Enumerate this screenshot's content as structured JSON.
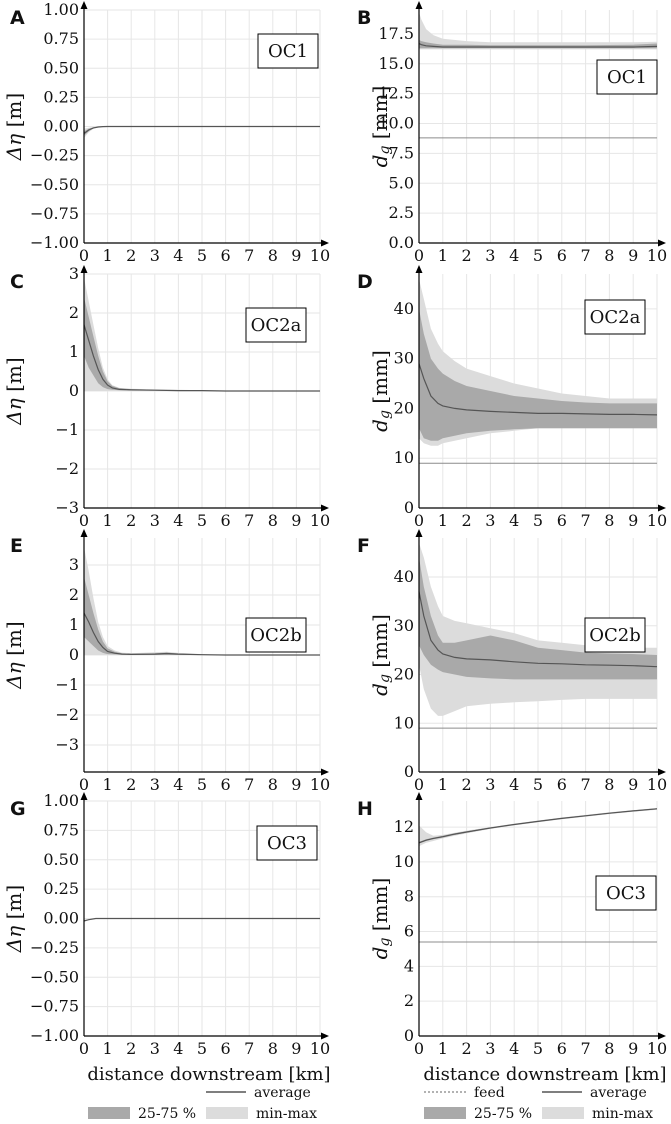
{
  "figure": {
    "xlabel_left": "distance downstream [km]",
    "xlabel_right": "distance downstream [km]",
    "legend_left": {
      "average": "average",
      "iqr": "25-75 %",
      "minmax": "min-max"
    },
    "legend_right": {
      "feed": "feed",
      "average": "average",
      "iqr": "25-75 %",
      "minmax": "min-max"
    },
    "colors": {
      "minmax": "#dcdcdc",
      "iqr": "#a9a9a9",
      "average": "#555555",
      "feed": "#8c8c8c",
      "axis": "#000000",
      "grid": "#e6e6e6"
    }
  },
  "chart_data": [
    {
      "type": "line",
      "panel": "A",
      "annotation": "OC1",
      "ylabel": "Δη [m]",
      "xlabel": "distance downstream [km]",
      "xlim": [
        0,
        10
      ],
      "ylim": [
        -1.0,
        1.0
      ],
      "xticks": [
        "0",
        "1",
        "2",
        "3",
        "4",
        "5",
        "6",
        "7",
        "8",
        "9",
        "10"
      ],
      "yticks": [
        {
          "v": -1.0,
          "t": "−1.00"
        },
        {
          "v": -0.75,
          "t": "−0.75"
        },
        {
          "v": -0.5,
          "t": "−0.50"
        },
        {
          "v": -0.25,
          "t": "−0.25"
        },
        {
          "v": 0.0,
          "t": "0.00"
        },
        {
          "v": 0.25,
          "t": "0.25"
        },
        {
          "v": 0.5,
          "t": "0.50"
        },
        {
          "v": 0.75,
          "t": "0.75"
        },
        {
          "v": 1.0,
          "t": "1.00"
        }
      ],
      "x": [
        0,
        0.2,
        0.4,
        0.6,
        0.8,
        1,
        2,
        4,
        6,
        8,
        10
      ],
      "average": [
        -0.06,
        -0.03,
        -0.012,
        -0.004,
        -0.001,
        0,
        0,
        0,
        0,
        0,
        0
      ],
      "iqr_low": [
        -0.08,
        -0.04,
        -0.015,
        -0.005,
        -0.002,
        0,
        0,
        0,
        0,
        0,
        0
      ],
      "iqr_high": [
        -0.04,
        -0.02,
        -0.008,
        -0.003,
        -0.001,
        0,
        0,
        0,
        0,
        0,
        0
      ],
      "min": [
        -0.1,
        -0.05,
        -0.02,
        -0.008,
        -0.003,
        -0.001,
        0,
        0,
        0,
        0,
        0
      ],
      "max": [
        -0.02,
        -0.01,
        -0.004,
        -0.001,
        0,
        0,
        0,
        0,
        0,
        0,
        0
      ]
    },
    {
      "type": "line",
      "panel": "B",
      "annotation": "OC1",
      "ylabel": "d_g [mm]",
      "xlabel": "distance downstream [km]",
      "xlim": [
        0,
        10
      ],
      "ylim": [
        0,
        19.5
      ],
      "xticks": [
        "0",
        "1",
        "2",
        "3",
        "4",
        "5",
        "6",
        "7",
        "8",
        "9",
        "10"
      ],
      "yticks": [
        {
          "v": 0,
          "t": "0.0"
        },
        {
          "v": 2.5,
          "t": "2.5"
        },
        {
          "v": 5,
          "t": "5.0"
        },
        {
          "v": 7.5,
          "t": "7.5"
        },
        {
          "v": 10,
          "t": "10.0"
        },
        {
          "v": 12.5,
          "t": "12.5"
        },
        {
          "v": 15,
          "t": "15.0"
        },
        {
          "v": 17.5,
          "t": "17.5"
        }
      ],
      "feed": 8.8,
      "x": [
        0,
        0.1,
        0.3,
        0.6,
        1,
        2,
        3,
        5,
        7,
        9,
        10
      ],
      "average": [
        16.7,
        16.6,
        16.5,
        16.45,
        16.4,
        16.4,
        16.4,
        16.4,
        16.4,
        16.4,
        16.45
      ],
      "iqr_low": [
        16.3,
        16.3,
        16.3,
        16.3,
        16.3,
        16.3,
        16.3,
        16.3,
        16.3,
        16.3,
        16.3
      ],
      "iqr_high": [
        17.0,
        16.9,
        16.8,
        16.7,
        16.6,
        16.6,
        16.55,
        16.55,
        16.55,
        16.6,
        16.7
      ],
      "min": [
        16.2,
        16.2,
        16.2,
        16.2,
        16.2,
        16.2,
        16.2,
        16.2,
        16.2,
        16.2,
        16.2
      ],
      "max": [
        19.3,
        18.7,
        17.9,
        17.4,
        17.1,
        16.9,
        16.8,
        16.8,
        16.8,
        16.8,
        16.85
      ]
    },
    {
      "type": "line",
      "panel": "C",
      "annotation": "OC2a",
      "ylabel": "Δη [m]",
      "xlabel": "distance downstream [km]",
      "xlim": [
        0,
        10
      ],
      "ylim": [
        -3,
        3
      ],
      "xticks": [
        "0",
        "1",
        "2",
        "3",
        "4",
        "5",
        "6",
        "7",
        "8",
        "9",
        "10"
      ],
      "yticks": [
        {
          "v": -3,
          "t": "−3"
        },
        {
          "v": -2,
          "t": "−2"
        },
        {
          "v": -1,
          "t": "−1"
        },
        {
          "v": 0,
          "t": "0"
        },
        {
          "v": 1,
          "t": "1"
        },
        {
          "v": 2,
          "t": "2"
        },
        {
          "v": 3,
          "t": "3"
        }
      ],
      "x": [
        0,
        0.2,
        0.4,
        0.6,
        0.8,
        1.0,
        1.2,
        1.5,
        2,
        3,
        4,
        5,
        6,
        8,
        10
      ],
      "average": [
        1.7,
        1.3,
        0.9,
        0.55,
        0.3,
        0.15,
        0.08,
        0.04,
        0.03,
        0.02,
        0.01,
        0.01,
        0.0,
        0.0,
        0.0
      ],
      "iqr_low": [
        0.9,
        0.6,
        0.4,
        0.2,
        0.1,
        0.05,
        0.03,
        0.02,
        0.01,
        0.01,
        0.0,
        0.0,
        0.0,
        0.0,
        0.0
      ],
      "iqr_high": [
        2.4,
        1.9,
        1.4,
        0.9,
        0.5,
        0.25,
        0.13,
        0.07,
        0.05,
        0.03,
        0.02,
        0.01,
        0.01,
        0.0,
        0.0
      ],
      "min": [
        0.0,
        0.0,
        0.0,
        0.0,
        0.0,
        0.0,
        0.0,
        0.0,
        0.0,
        0.0,
        0.0,
        0.0,
        0.0,
        0.0,
        0.0
      ],
      "max": [
        2.9,
        2.3,
        1.7,
        1.1,
        0.6,
        0.3,
        0.15,
        0.08,
        0.06,
        0.04,
        0.03,
        0.02,
        0.01,
        0.01,
        0.0
      ]
    },
    {
      "type": "line",
      "panel": "D",
      "annotation": "OC2a",
      "ylabel": "d_g [mm]",
      "xlabel": "distance downstream [km]",
      "xlim": [
        0,
        10
      ],
      "ylim": [
        0,
        47
      ],
      "xticks": [
        "0",
        "1",
        "2",
        "3",
        "4",
        "5",
        "6",
        "7",
        "8",
        "9",
        "10"
      ],
      "yticks": [
        {
          "v": 0,
          "t": "0"
        },
        {
          "v": 10,
          "t": "10"
        },
        {
          "v": 20,
          "t": "20"
        },
        {
          "v": 30,
          "t": "30"
        },
        {
          "v": 40,
          "t": "40"
        }
      ],
      "feed": 9.0,
      "x": [
        0,
        0.2,
        0.5,
        0.8,
        1,
        1.5,
        2,
        3,
        4,
        5,
        6,
        7,
        8,
        9,
        10
      ],
      "average": [
        29,
        26,
        22.5,
        21,
        20.5,
        20,
        19.7,
        19.4,
        19.2,
        19.0,
        19.0,
        18.9,
        18.8,
        18.8,
        18.7
      ],
      "iqr_low": [
        16,
        14,
        13.5,
        13.5,
        14,
        14.5,
        15,
        15.5,
        15.8,
        16,
        16,
        16,
        16,
        16,
        16
      ],
      "iqr_high": [
        40,
        35,
        30,
        28,
        27,
        25.5,
        24.5,
        23.5,
        22.5,
        22,
        21.5,
        21.2,
        21,
        21,
        21
      ],
      "min": [
        14,
        13,
        12.5,
        12.5,
        13,
        13.5,
        14,
        15,
        15.5,
        16,
        16,
        16,
        16,
        16,
        16
      ],
      "max": [
        46,
        42,
        36,
        33,
        31.5,
        29.5,
        28,
        26.5,
        25,
        24,
        23,
        22.5,
        22,
        22,
        22
      ]
    },
    {
      "type": "line",
      "panel": "E",
      "annotation": "OC2b",
      "ylabel": "Δη [m]",
      "xlabel": "distance downstream [km]",
      "xlim": [
        0,
        10
      ],
      "ylim": [
        -3.9,
        3.9
      ],
      "xticks": [
        "0",
        "1",
        "2",
        "3",
        "4",
        "5",
        "6",
        "7",
        "8",
        "9",
        "10"
      ],
      "yticks": [
        {
          "v": -3,
          "t": "−3"
        },
        {
          "v": -2,
          "t": "−2"
        },
        {
          "v": -1,
          "t": "−1"
        },
        {
          "v": 0,
          "t": "0"
        },
        {
          "v": 1,
          "t": "1"
        },
        {
          "v": 2,
          "t": "2"
        },
        {
          "v": 3,
          "t": "3"
        }
      ],
      "x": [
        0,
        0.2,
        0.4,
        0.6,
        0.8,
        1.0,
        1.3,
        1.6,
        2,
        3,
        3.5,
        4,
        5,
        6,
        8,
        10
      ],
      "average": [
        1.4,
        1.1,
        0.75,
        0.45,
        0.25,
        0.12,
        0.06,
        0.03,
        0.02,
        0.03,
        0.05,
        0.03,
        0.01,
        0.0,
        0.0,
        0.0
      ],
      "iqr_low": [
        0.6,
        0.45,
        0.3,
        0.15,
        0.07,
        0.03,
        0.02,
        0.01,
        0.0,
        0.0,
        0.0,
        0.0,
        0.0,
        0.0,
        0.0,
        0.0
      ],
      "iqr_high": [
        2.6,
        2.0,
        1.4,
        0.85,
        0.45,
        0.22,
        0.11,
        0.06,
        0.04,
        0.06,
        0.08,
        0.05,
        0.02,
        0.01,
        0.0,
        0.0
      ],
      "min": [
        0.0,
        0.0,
        0.0,
        0.0,
        0.0,
        0.0,
        0.0,
        0.0,
        0.0,
        0.0,
        0.0,
        0.0,
        0.0,
        0.0,
        0.0,
        0.0
      ],
      "max": [
        3.6,
        2.8,
        1.9,
        1.1,
        0.6,
        0.3,
        0.15,
        0.08,
        0.06,
        0.09,
        0.11,
        0.07,
        0.03,
        0.01,
        0.01,
        0.0
      ]
    },
    {
      "type": "line",
      "panel": "F",
      "annotation": "OC2b",
      "ylabel": "d_g [mm]",
      "xlabel": "distance downstream [km]",
      "xlim": [
        0,
        10
      ],
      "ylim": [
        0,
        48
      ],
      "xticks": [
        "0",
        "1",
        "2",
        "3",
        "4",
        "5",
        "6",
        "7",
        "8",
        "9",
        "10"
      ],
      "yticks": [
        {
          "v": 0,
          "t": "0"
        },
        {
          "v": 10,
          "t": "10"
        },
        {
          "v": 20,
          "t": "20"
        },
        {
          "v": 30,
          "t": "30"
        },
        {
          "v": 40,
          "t": "40"
        }
      ],
      "feed": 9.0,
      "x": [
        0,
        0.2,
        0.5,
        0.8,
        1,
        1.5,
        2,
        3,
        4,
        5,
        6,
        7,
        8,
        9,
        10
      ],
      "average": [
        37,
        32,
        27,
        25,
        24.2,
        23.5,
        23.2,
        23,
        22.6,
        22.3,
        22.2,
        22.0,
        21.9,
        21.8,
        21.6
      ],
      "iqr_low": [
        26,
        24,
        22,
        21,
        20.5,
        20,
        19.5,
        19.2,
        19,
        19,
        19,
        19,
        19,
        19,
        19
      ],
      "iqr_high": [
        44,
        38,
        32,
        28,
        26.5,
        26.5,
        27,
        28,
        27,
        25.5,
        25,
        24.5,
        24.3,
        24.2,
        24
      ],
      "min": [
        22,
        17,
        13,
        11.5,
        11.5,
        12.5,
        13.5,
        14,
        14.3,
        14.5,
        14.8,
        15,
        15,
        15,
        15
      ],
      "max": [
        47,
        44,
        38,
        34,
        32,
        31,
        30.5,
        29.5,
        28.5,
        27,
        26.5,
        26,
        25.5,
        25.5,
        25.5
      ]
    },
    {
      "type": "line",
      "panel": "G",
      "annotation": "OC3",
      "ylabel": "Δη [m]",
      "xlabel": "distance downstream [km]",
      "xlim": [
        0,
        10
      ],
      "ylim": [
        -1.0,
        1.0
      ],
      "xticks": [
        "0",
        "1",
        "2",
        "3",
        "4",
        "5",
        "6",
        "7",
        "8",
        "9",
        "10"
      ],
      "yticks": [
        {
          "v": -1.0,
          "t": "−1.00"
        },
        {
          "v": -0.75,
          "t": "−0.75"
        },
        {
          "v": -0.5,
          "t": "−0.50"
        },
        {
          "v": -0.25,
          "t": "−0.25"
        },
        {
          "v": 0.0,
          "t": "0.00"
        },
        {
          "v": 0.25,
          "t": "0.25"
        },
        {
          "v": 0.5,
          "t": "0.50"
        },
        {
          "v": 0.75,
          "t": "0.75"
        },
        {
          "v": 1.0,
          "t": "1.00"
        }
      ],
      "x": [
        0,
        0.2,
        0.5,
        1,
        2,
        4,
        6,
        8,
        10
      ],
      "average": [
        -0.02,
        -0.01,
        0,
        0,
        0,
        0,
        0,
        0,
        0
      ],
      "iqr_low": [
        -0.025,
        -0.012,
        -0.002,
        0,
        0,
        0,
        0,
        0,
        0
      ],
      "iqr_high": [
        -0.015,
        -0.008,
        0,
        0,
        0,
        0,
        0,
        0,
        0
      ],
      "min": [
        -0.03,
        -0.015,
        -0.003,
        0,
        0,
        0,
        0,
        0,
        0
      ],
      "max": [
        -0.01,
        -0.005,
        0,
        0,
        0,
        0,
        0,
        0,
        0
      ]
    },
    {
      "type": "line",
      "panel": "H",
      "annotation": "OC3",
      "ylabel": "d_g [mm]",
      "xlabel": "distance downstream [km]",
      "xlim": [
        0,
        10
      ],
      "ylim": [
        0,
        13.5
      ],
      "xticks": [
        "0",
        "1",
        "2",
        "3",
        "4",
        "5",
        "6",
        "7",
        "8",
        "9",
        "10"
      ],
      "yticks": [
        {
          "v": 0,
          "t": "0"
        },
        {
          "v": 2,
          "t": "2"
        },
        {
          "v": 4,
          "t": "4"
        },
        {
          "v": 6,
          "t": "6"
        },
        {
          "v": 8,
          "t": "8"
        },
        {
          "v": 10,
          "t": "10"
        },
        {
          "v": 12,
          "t": "12"
        }
      ],
      "feed": 5.4,
      "x": [
        0,
        0.3,
        0.6,
        1,
        1.5,
        2,
        3,
        4,
        5,
        6,
        7,
        8,
        9,
        10
      ],
      "average": [
        11.1,
        11.25,
        11.35,
        11.45,
        11.6,
        11.72,
        11.95,
        12.15,
        12.33,
        12.5,
        12.65,
        12.8,
        12.93,
        13.05
      ],
      "iqr_low": [
        11.05,
        11.2,
        11.3,
        11.4,
        11.55,
        11.68,
        11.92,
        12.12,
        12.3,
        12.47,
        12.62,
        12.77,
        12.9,
        13.02
      ],
      "iqr_high": [
        11.15,
        11.3,
        11.4,
        11.5,
        11.65,
        11.76,
        11.98,
        12.18,
        12.36,
        12.53,
        12.68,
        12.83,
        12.96,
        13.08
      ],
      "min": [
        10.9,
        11.1,
        11.2,
        11.35,
        11.5,
        11.64,
        11.9,
        12.1,
        12.28,
        12.45,
        12.6,
        12.75,
        12.88,
        13.0
      ],
      "max": [
        12.1,
        11.7,
        11.5,
        11.55,
        11.68,
        11.8,
        12.0,
        12.2,
        12.38,
        12.55,
        12.7,
        12.85,
        12.98,
        13.1
      ]
    }
  ]
}
